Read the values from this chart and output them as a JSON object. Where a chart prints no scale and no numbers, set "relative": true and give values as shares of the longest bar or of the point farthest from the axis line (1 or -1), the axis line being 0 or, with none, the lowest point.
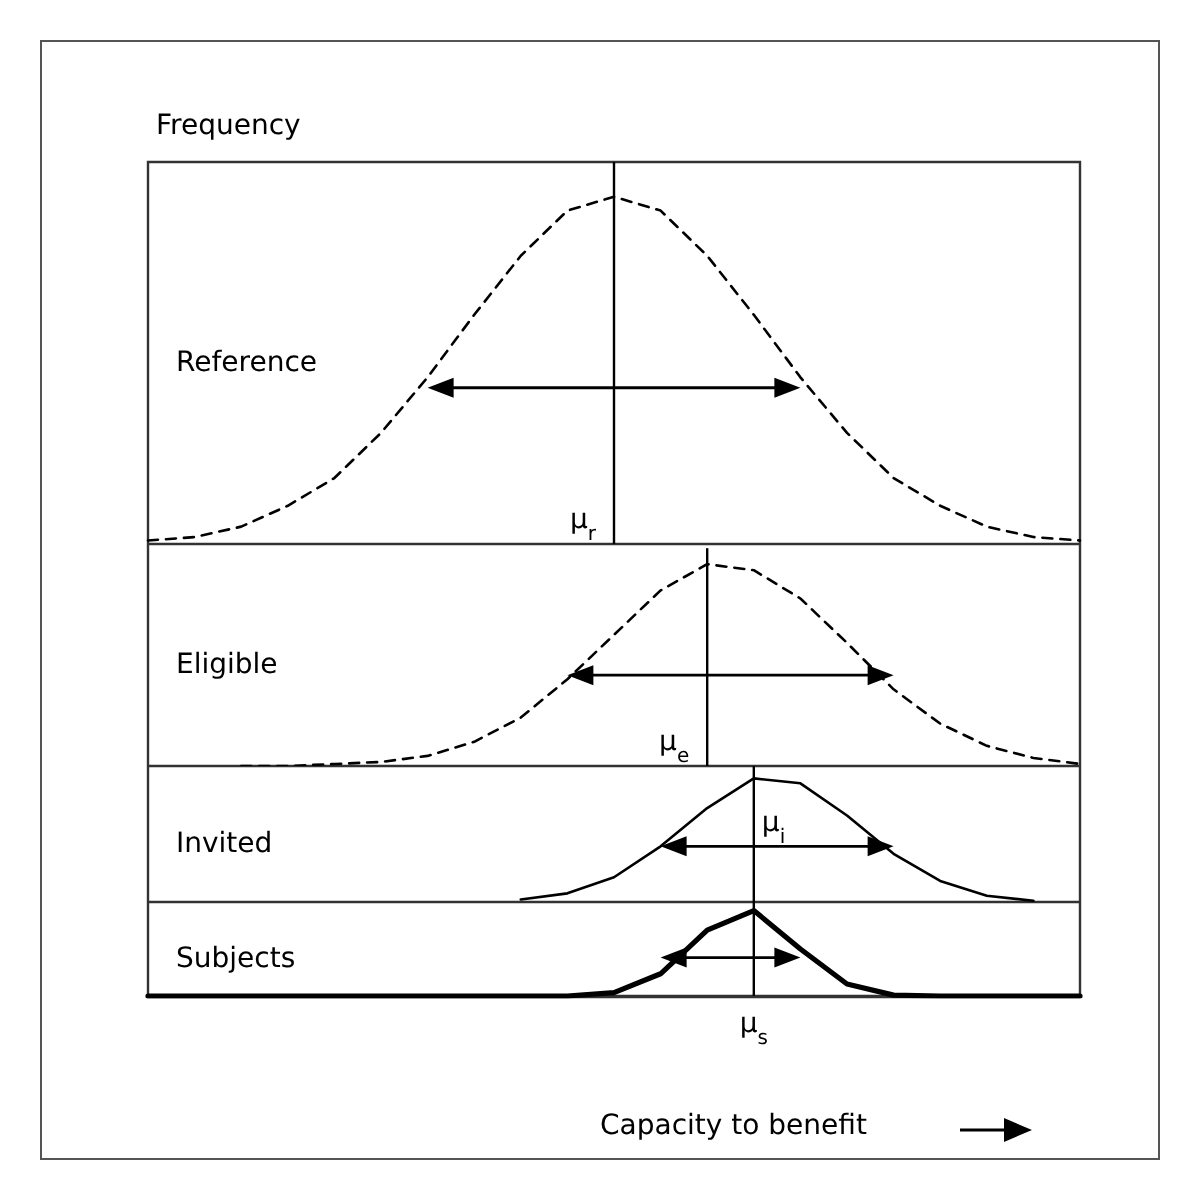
{
  "chart_data": [
    {
      "type": "line",
      "relative": true,
      "ylabel": "Frequency",
      "tick_labels": false,
      "grid": false,
      "legend": false,
      "annotations": [
        "μ$_{r}$"
      ],
      "categories": [
        null,
        null,
        null,
        null,
        null,
        null,
        null,
        null,
        null,
        null,
        null,
        null,
        null,
        null,
        null,
        null,
        null,
        null,
        null,
        null,
        null
      ],
      "series": [
        {
          "name": "Reference",
          "color": "#000000",
          "line_style": "dashed",
          "values": [
            0.01,
            0.02,
            0.05,
            0.11,
            0.19,
            0.32,
            0.48,
            0.66,
            0.83,
            0.96,
            1,
            0.96,
            0.83,
            0.66,
            0.48,
            0.32,
            0.19,
            0.11,
            0.05,
            0.02,
            0.01
          ]
        }
      ]
    },
    {
      "type": "line",
      "relative": true,
      "tick_labels": false,
      "grid": false,
      "legend": false,
      "annotations": [
        "μ$_{e}$"
      ],
      "categories": [
        null,
        null,
        null,
        null,
        null,
        null,
        null,
        null,
        null,
        null,
        null,
        null,
        null,
        null,
        null,
        null,
        null,
        null,
        null,
        null,
        null
      ],
      "series": [
        {
          "name": "Eligible",
          "color": "#000000",
          "line_style": "dashed",
          "values": [
            null,
            null,
            0,
            0,
            0.01,
            0.02,
            0.05,
            0.12,
            0.24,
            0.43,
            0.65,
            0.87,
            1,
            0.97,
            0.83,
            0.61,
            0.38,
            0.21,
            0.1,
            0.04,
            0.01
          ]
        }
      ]
    },
    {
      "type": "line",
      "relative": true,
      "tick_labels": false,
      "grid": false,
      "legend": false,
      "annotations": [
        "μ$_{i}$"
      ],
      "categories": [
        null,
        null,
        null,
        null,
        null,
        null,
        null,
        null,
        null,
        null,
        null,
        null,
        null,
        null,
        null,
        null,
        null,
        null,
        null,
        null,
        null
      ],
      "series": [
        {
          "name": "Invited",
          "color": "#000000",
          "line_style": "solid",
          "values": [
            null,
            null,
            null,
            null,
            null,
            null,
            null,
            null,
            0.02,
            0.07,
            0.2,
            0.45,
            0.76,
            1,
            0.96,
            0.7,
            0.39,
            0.17,
            0.05,
            0.01,
            null
          ]
        }
      ]
    },
    {
      "type": "line",
      "relative": true,
      "tick_labels": false,
      "grid": false,
      "legend": false,
      "xlabel": "Capacity to benefit",
      "annotations": [
        "μ$_{s}$"
      ],
      "categories": [
        null,
        null,
        null,
        null,
        null,
        null,
        null,
        null,
        null,
        null,
        null,
        null,
        null,
        null,
        null,
        null,
        null,
        null,
        null,
        null,
        null
      ],
      "series": [
        {
          "name": "Subjects",
          "color": "#000000",
          "line_style": "solid",
          "values": [
            0,
            0,
            0,
            0,
            0,
            0,
            0,
            0,
            0,
            0,
            0.04,
            0.26,
            0.77,
            1,
            0.55,
            0.14,
            0.01,
            0,
            0,
            0,
            0
          ]
        }
      ]
    }
  ]
}
